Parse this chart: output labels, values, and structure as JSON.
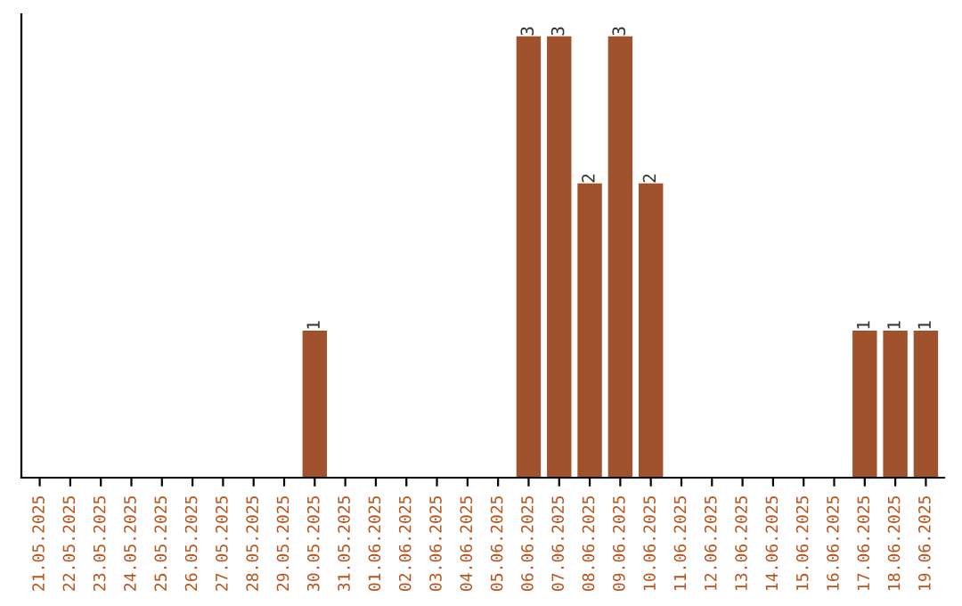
{
  "chart_data": {
    "type": "bar",
    "categories": [
      "21.05.2025",
      "22.05.2025",
      "23.05.2025",
      "24.05.2025",
      "25.05.2025",
      "26.05.2025",
      "27.05.2025",
      "28.05.2025",
      "29.05.2025",
      "30.05.2025",
      "31.05.2025",
      "01.06.2025",
      "02.06.2025",
      "03.06.2025",
      "04.06.2025",
      "05.06.2025",
      "06.06.2025",
      "07.06.2025",
      "08.06.2025",
      "09.06.2025",
      "10.06.2025",
      "11.06.2025",
      "12.06.2025",
      "13.06.2025",
      "14.06.2025",
      "15.06.2025",
      "16.06.2025",
      "17.06.2025",
      "18.06.2025",
      "19.06.2025"
    ],
    "values": [
      0,
      0,
      0,
      0,
      0,
      0,
      0,
      0,
      0,
      1,
      0,
      0,
      0,
      0,
      0,
      0,
      3,
      3,
      2,
      3,
      2,
      0,
      0,
      0,
      0,
      0,
      0,
      1,
      1,
      1
    ],
    "value_labels": [
      null,
      null,
      null,
      null,
      null,
      null,
      null,
      null,
      null,
      "1",
      null,
      null,
      null,
      null,
      null,
      null,
      "3",
      "3",
      "2",
      "3",
      "2",
      null,
      null,
      null,
      null,
      null,
      null,
      "1",
      "1",
      "1"
    ],
    "color": "#a0522d",
    "grid": false,
    "legend": false,
    "tick_labels": "x"
  }
}
